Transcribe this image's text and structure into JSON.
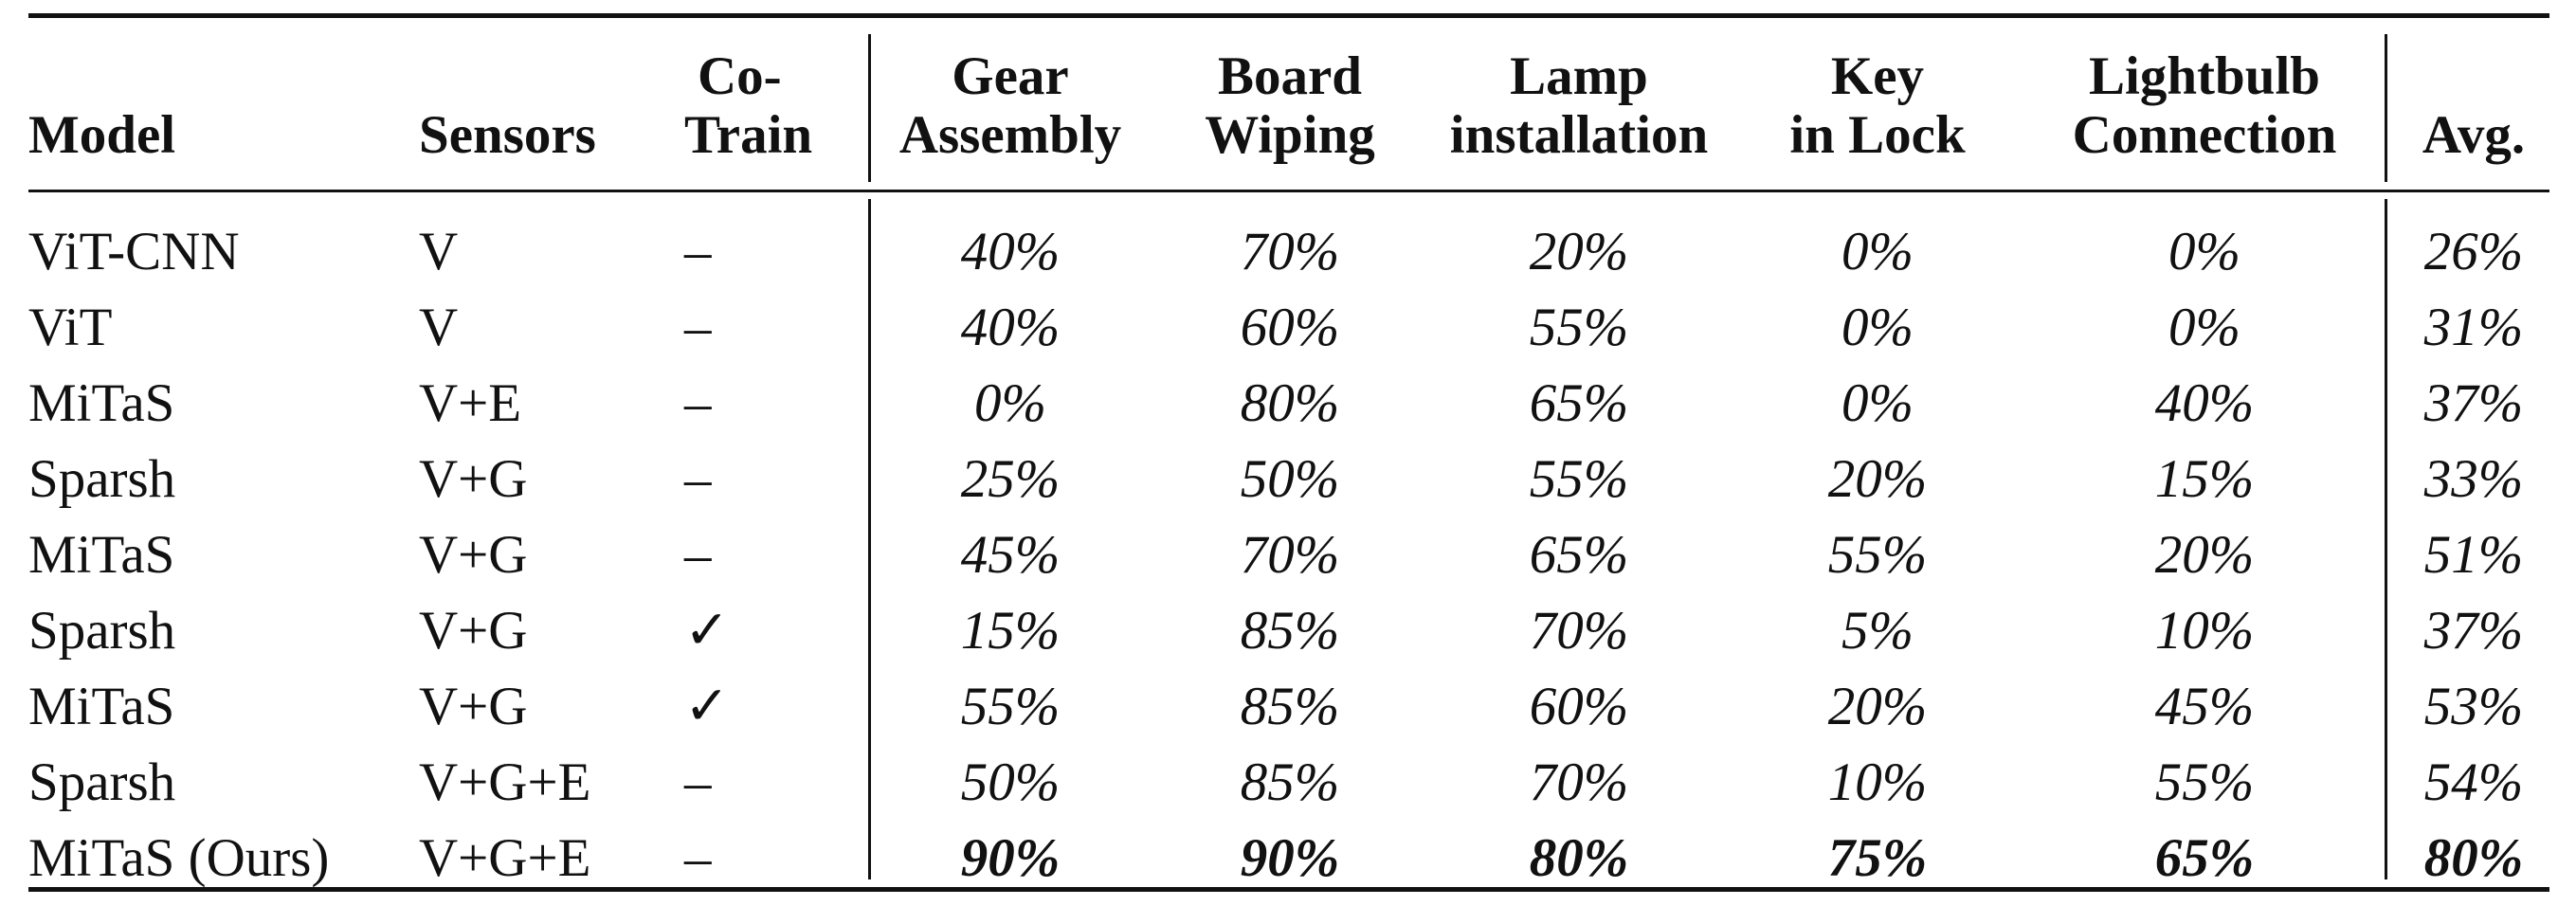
{
  "table": {
    "headers": {
      "model": "Model",
      "sensors": "Sensors",
      "cotrain_line1": "Co-",
      "cotrain_line2": "Train",
      "gear_line1": "Gear",
      "gear_line2": "Assembly",
      "board_line1": "Board",
      "board_line2": "Wiping",
      "lamp_line1": "Lamp",
      "lamp_line2": "installation",
      "key_line1": "Key",
      "key_line2": "in Lock",
      "bulb_line1": "Lightbulb",
      "bulb_line2": "Connection",
      "avg": "Avg."
    },
    "rows": [
      {
        "model": "ViT-CNN",
        "sensors": "V",
        "cotrain": "–",
        "gear": "40%",
        "board": "70%",
        "lamp": "20%",
        "key": "0%",
        "bulb": "0%",
        "avg": "26%"
      },
      {
        "model": "ViT",
        "sensors": "V",
        "cotrain": "–",
        "gear": "40%",
        "board": "60%",
        "lamp": "55%",
        "key": "0%",
        "bulb": "0%",
        "avg": "31%"
      },
      {
        "model": "MiTaS",
        "sensors": "V+E",
        "cotrain": "–",
        "gear": "0%",
        "board": "80%",
        "lamp": "65%",
        "key": "0%",
        "bulb": "40%",
        "avg": "37%"
      },
      {
        "model": "Sparsh",
        "sensors": "V+G",
        "cotrain": "–",
        "gear": "25%",
        "board": "50%",
        "lamp": "55%",
        "key": "20%",
        "bulb": "15%",
        "avg": "33%"
      },
      {
        "model": "MiTaS",
        "sensors": "V+G",
        "cotrain": "–",
        "gear": "45%",
        "board": "70%",
        "lamp": "65%",
        "key": "55%",
        "bulb": "20%",
        "avg": "51%"
      },
      {
        "model": "Sparsh",
        "sensors": "V+G",
        "cotrain": "✓",
        "gear": "15%",
        "board": "85%",
        "lamp": "70%",
        "key": "5%",
        "bulb": "10%",
        "avg": "37%"
      },
      {
        "model": "MiTaS",
        "sensors": "V+G",
        "cotrain": "✓",
        "gear": "55%",
        "board": "85%",
        "lamp": "60%",
        "key": "20%",
        "bulb": "45%",
        "avg": "53%"
      },
      {
        "model": "Sparsh",
        "sensors": "V+G+E",
        "cotrain": "–",
        "gear": "50%",
        "board": "85%",
        "lamp": "70%",
        "key": "10%",
        "bulb": "55%",
        "avg": "54%"
      },
      {
        "model": "MiTaS (Ours)",
        "sensors": "V+G+E",
        "cotrain": "–",
        "gear": "90%",
        "board": "90%",
        "lamp": "80%",
        "key": "75%",
        "bulb": "65%",
        "avg": "80%"
      }
    ]
  }
}
